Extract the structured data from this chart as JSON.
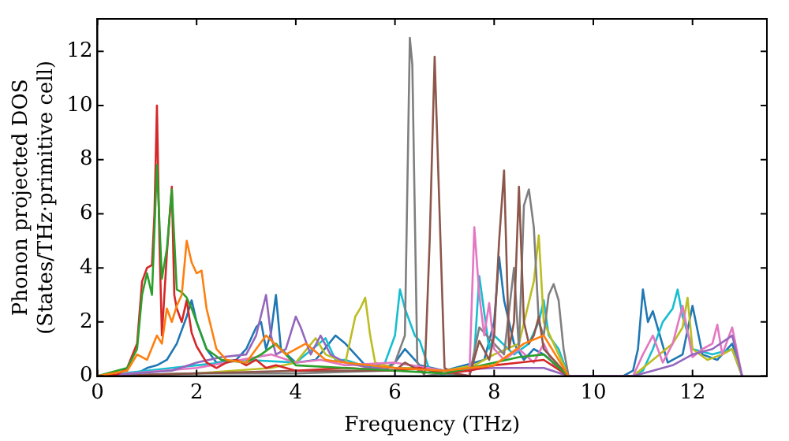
{
  "chart_data": {
    "type": "line",
    "xlabel": "Frequency (THz)",
    "ylabel": "Phonon projected DOS\n(States/THz·primitive cell)",
    "xlim": [
      0,
      13.5
    ],
    "xticks": [
      0,
      2,
      4,
      6,
      8,
      10,
      12
    ],
    "ylim": [
      0,
      13.2
    ],
    "yticks": [
      0,
      2,
      4,
      6,
      8,
      10,
      12
    ],
    "grid": false,
    "legend": false,
    "marker": "none",
    "line_style": "solid",
    "series": [
      {
        "color": "#ff7f0e",
        "x": [
          0,
          0.6,
          0.8,
          1.0,
          1.2,
          1.3,
          1.4,
          1.5,
          1.6,
          1.7,
          1.8,
          1.9,
          2.0,
          2.1,
          2.2,
          2.4,
          2.6,
          3.0,
          3.4,
          3.8,
          4.2,
          4.6,
          5.0,
          6.0,
          7.0,
          8.0,
          8.6,
          9.0,
          9.5
        ],
        "values": [
          0,
          0.2,
          0.8,
          0.6,
          1.5,
          1.2,
          2.5,
          2,
          2.6,
          3,
          5,
          4.2,
          3.8,
          3.9,
          2.5,
          1.0,
          0.6,
          0.5,
          1.5,
          0.8,
          1.2,
          0.6,
          0.5,
          0.3,
          0.2,
          0.4,
          1.2,
          1.5,
          0
        ]
      },
      {
        "color": "#2ca02c",
        "x": [
          0,
          0.6,
          0.8,
          0.9,
          1.0,
          1.1,
          1.2,
          1.3,
          1.4,
          1.5,
          1.6,
          1.7,
          1.8,
          1.9,
          2.0,
          2.2,
          2.5,
          3.0,
          3.3,
          3.6,
          4.0,
          5.0,
          6.0,
          7.0,
          8.0,
          8.5,
          9.0,
          9.5
        ],
        "values": [
          0,
          0.3,
          1,
          3,
          3.8,
          3,
          7.8,
          3.6,
          4.7,
          6.9,
          3.2,
          3.1,
          2.9,
          2.5,
          2.0,
          1.0,
          0.6,
          0.5,
          0.8,
          1.2,
          0.4,
          0.3,
          0.2,
          0.1,
          0.5,
          0.7,
          0.8,
          0
        ]
      },
      {
        "color": "#d62728",
        "x": [
          0,
          0.4,
          0.6,
          0.8,
          0.9,
          1.0,
          1.1,
          1.15,
          1.2,
          1.25,
          1.3,
          1.4,
          1.5,
          1.55,
          1.6,
          1.7,
          1.8,
          1.9,
          2.0,
          2.2,
          2.4,
          2.6,
          2.8,
          3.0,
          3.2,
          3.4,
          3.6,
          3.8,
          4.0,
          5.0,
          6.0,
          6.5,
          7.0,
          7.5,
          8.0,
          8.5,
          9.0,
          9.5
        ],
        "values": [
          0,
          0.05,
          0.3,
          1.2,
          3.5,
          4,
          4.1,
          6,
          10,
          5,
          1.5,
          4.5,
          7,
          3,
          2.5,
          2,
          2.8,
          1.6,
          1.1,
          0.5,
          0.3,
          0.5,
          0.6,
          0.4,
          0.6,
          0.3,
          0.4,
          0.3,
          0.2,
          0.3,
          0.2,
          0.3,
          0.1,
          0.2,
          0.4,
          0.5,
          0.6,
          0
        ]
      },
      {
        "color": "#9467bd",
        "x": [
          0,
          1.5,
          2.0,
          2.5,
          3.0,
          3.2,
          3.4,
          3.5,
          3.6,
          3.8,
          4.0,
          4.1,
          4.3,
          4.5,
          4.7,
          5.0,
          5.5,
          6.0,
          7.0,
          8.0,
          9.0,
          9.5,
          10.8,
          11.2,
          11.6,
          12.0,
          12.4,
          12.8,
          13.0
        ],
        "values": [
          0,
          0.2,
          0.5,
          0.7,
          0.8,
          1.5,
          3,
          1.5,
          0.8,
          1.0,
          2.2,
          1.8,
          0.8,
          1.5,
          0.8,
          0.5,
          0.3,
          0.3,
          0.2,
          0.3,
          0.3,
          0,
          0,
          0.2,
          0.4,
          0.8,
          1.0,
          1.5,
          0
        ]
      },
      {
        "color": "#8c564b",
        "x": [
          0,
          2,
          4,
          6,
          6.2,
          6.4,
          6.6,
          6.7,
          6.8,
          6.9,
          7.0,
          7.2,
          7.5,
          7.7,
          7.9,
          8.0,
          8.1,
          8.2,
          8.3,
          8.4,
          8.5,
          8.6,
          8.7,
          8.8,
          8.9,
          9.0,
          9.2,
          9.5
        ],
        "values": [
          0,
          0.1,
          0.2,
          0.2,
          0.5,
          0.3,
          0.1,
          5,
          11.8,
          6,
          0.3,
          0.1,
          0,
          1.3,
          0.6,
          1.5,
          5,
          7.6,
          1,
          2,
          7,
          2,
          1.2,
          1.5,
          2.2,
          1.0,
          0.6,
          0
        ]
      },
      {
        "color": "#e377c2",
        "x": [
          0,
          2,
          3.5,
          4.0,
          4.5,
          5.0,
          6.0,
          7.0,
          7.5,
          7.6,
          7.7,
          7.8,
          7.9,
          8.0,
          8.2,
          8.5,
          8.8,
          9.0,
          9.2,
          9.5,
          10.8,
          11.0,
          11.2,
          11.4,
          11.6,
          11.8,
          12.0,
          12.2,
          12.4,
          12.5,
          12.6,
          12.8,
          12.9,
          13.0
        ],
        "values": [
          0,
          0.3,
          0.8,
          0.5,
          0.6,
          0.4,
          0.5,
          0.2,
          0,
          5.5,
          3,
          1.5,
          2.7,
          1.0,
          0.6,
          1,
          0.5,
          1.2,
          0.4,
          0,
          0,
          0.8,
          1.5,
          0.5,
          1.2,
          2.6,
          0.7,
          1.0,
          1.2,
          1.9,
          0.8,
          1.8,
          0.9,
          0
        ]
      },
      {
        "color": "#7f7f7f",
        "x": [
          0,
          2,
          4,
          5.8,
          6.0,
          6.1,
          6.2,
          6.3,
          6.35,
          6.45,
          6.6,
          7.0,
          7.5,
          7.7,
          8.0,
          8.2,
          8.4,
          8.5,
          8.6,
          8.7,
          8.8,
          8.9,
          9.0,
          9.1,
          9.2,
          9.3,
          9.4,
          9.5
        ],
        "values": [
          0,
          0.1,
          0.1,
          0.2,
          0.5,
          1,
          1.5,
          12.5,
          11.5,
          0.5,
          0,
          0.1,
          0,
          1.8,
          1.2,
          0.8,
          4,
          1,
          6.3,
          6.9,
          5.5,
          2,
          1.5,
          3,
          3.4,
          2.8,
          1,
          0
        ]
      },
      {
        "color": "#bcbd22",
        "x": [
          0,
          2,
          3.5,
          4.0,
          4.4,
          4.6,
          5.0,
          5.2,
          5.3,
          5.4,
          5.5,
          5.6,
          6.0,
          6.5,
          7.0,
          7.6,
          8.0,
          8.5,
          8.8,
          8.9,
          9.0,
          9.2,
          9.5,
          10.8,
          11.2,
          11.6,
          11.8,
          11.9,
          12.0,
          12.3,
          12.6,
          12.8,
          13.0
        ],
        "values": [
          0,
          0.1,
          0.3,
          0.5,
          1.4,
          0.8,
          0.5,
          2.2,
          2.5,
          2.9,
          1.5,
          0.5,
          0.3,
          0.3,
          0.2,
          0.4,
          0.8,
          1.2,
          3.5,
          5.2,
          2.0,
          1.2,
          0,
          0,
          0.6,
          1.2,
          1.8,
          2.9,
          1.0,
          0.6,
          0.8,
          1.0,
          0
        ]
      },
      {
        "color": "#17becf",
        "x": [
          0,
          1.5,
          2,
          3,
          4,
          4.6,
          4.8,
          5.0,
          5.5,
          5.8,
          6.0,
          6.1,
          6.2,
          6.4,
          6.5,
          6.7,
          7.0,
          7.5,
          7.6,
          7.7,
          7.9,
          8.0,
          8.4,
          8.7,
          8.9,
          9.0,
          9.1,
          9.3,
          9.5,
          10.8,
          11.0,
          11.2,
          11.4,
          11.6,
          11.7,
          11.8,
          12.0,
          12.4,
          12.8,
          13.0
        ],
        "values": [
          0,
          0.3,
          0.4,
          0.6,
          0.5,
          1.4,
          0.6,
          0.6,
          0.3,
          0.5,
          1.5,
          3.2,
          2.5,
          1.5,
          1.3,
          0.2,
          0,
          0,
          0.8,
          3.7,
          1.0,
          1.5,
          0.8,
          1.2,
          2.0,
          2.8,
          1.5,
          1.0,
          0,
          0,
          0.2,
          1.0,
          2.0,
          2.5,
          3.2,
          2.2,
          1.0,
          0.8,
          1.0,
          0
        ]
      },
      {
        "color": "#1f77b4",
        "x": [
          0,
          0.8,
          1.0,
          1.2,
          1.4,
          1.6,
          1.8,
          1.9,
          2.0,
          2.2,
          2.4,
          2.8,
          3.0,
          3.2,
          3.3,
          3.4,
          3.5,
          3.6,
          3.7,
          4.0,
          4.4,
          4.8,
          5.0,
          5.4,
          5.8,
          6.0,
          6.2,
          6.5,
          7.0,
          7.6,
          7.8,
          8.0,
          8.1,
          8.2,
          8.4,
          8.6,
          8.8,
          9.0,
          9.2,
          9.5,
          10.6,
          10.8,
          10.9,
          11.0,
          11.1,
          11.2,
          11.5,
          11.8,
          12.0,
          12.2,
          12.5,
          12.8,
          13.0
        ],
        "values": [
          0,
          0.1,
          0.3,
          0.4,
          0.6,
          1.2,
          2.2,
          2.8,
          2.0,
          1.0,
          0.5,
          0.6,
          1.0,
          1.8,
          2.0,
          1.0,
          1.6,
          3.0,
          1.0,
          0.5,
          0.6,
          1.5,
          1.2,
          0.4,
          0.3,
          0.5,
          1.0,
          0.4,
          0.2,
          0.5,
          0.6,
          2,
          4.4,
          2.8,
          1.2,
          0.6,
          1.0,
          0.8,
          0.5,
          0,
          0,
          0.2,
          1.0,
          3.2,
          2.0,
          2.4,
          0.5,
          0.8,
          2.6,
          0.8,
          0.6,
          1.2,
          0
        ]
      }
    ]
  }
}
